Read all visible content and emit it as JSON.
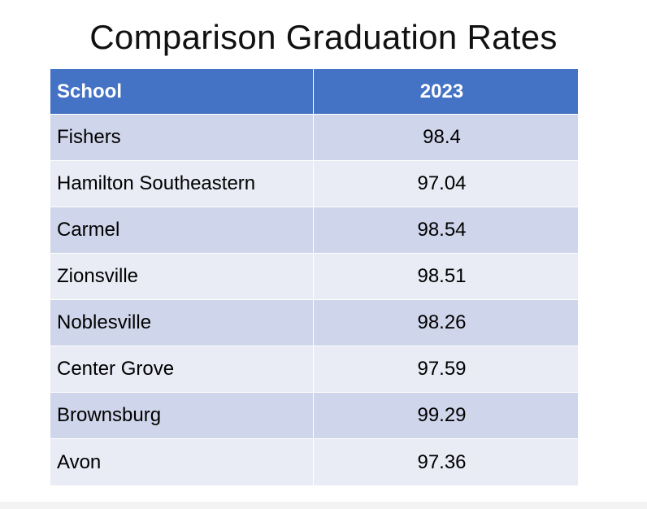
{
  "title": "Comparison Graduation Rates",
  "table": {
    "headers": [
      "School",
      "2023"
    ],
    "rows": [
      {
        "school": "Fishers",
        "rate": "98.4"
      },
      {
        "school": "Hamilton Southeastern",
        "rate": "97.04"
      },
      {
        "school": "Carmel",
        "rate": "98.54"
      },
      {
        "school": "Zionsville",
        "rate": "98.51"
      },
      {
        "school": "Noblesville",
        "rate": "98.26"
      },
      {
        "school": "Center Grove",
        "rate": "97.59"
      },
      {
        "school": "Brownsburg",
        "rate": "99.29"
      },
      {
        "school": "Avon",
        "rate": "97.36"
      }
    ]
  },
  "colors": {
    "header": "#4472c4",
    "row_dark": "#cfd5ea",
    "row_light": "#e9ebf5"
  }
}
